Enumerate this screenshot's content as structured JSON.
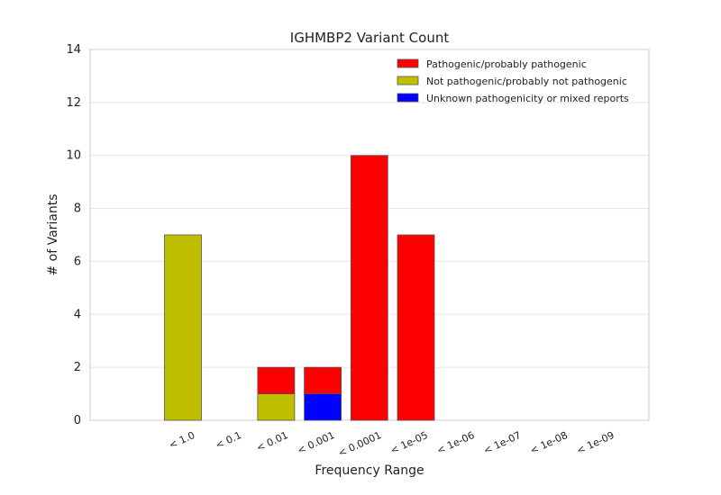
{
  "chart_data": {
    "type": "bar",
    "stacked": true,
    "title": "IGHMBP2 Variant Count",
    "xlabel": "Frequency Range",
    "ylabel": "# of Variants",
    "ylim": [
      0,
      14
    ],
    "yticks": [
      "0",
      "2",
      "4",
      "6",
      "8",
      "10",
      "12",
      "14"
    ],
    "categories": [
      "< 1.0",
      "< 0.1",
      "< 0.01",
      "< 0.001",
      "< 0.0001",
      "< 1e-05",
      "< 1e-06",
      "< 1e-07",
      "< 1e-08",
      "< 1e-09"
    ],
    "series": [
      {
        "name": "Unknown pathogenicity or mixed reports",
        "color": "#0000ff",
        "values": [
          0,
          0,
          0,
          1,
          0,
          0,
          0,
          0,
          0,
          0
        ]
      },
      {
        "name": "Not pathogenic/probably not pathogenic",
        "color": "#bfbf00",
        "values": [
          7,
          0,
          1,
          0,
          0,
          0,
          0,
          0,
          0,
          0
        ]
      },
      {
        "name": "Pathogenic/probably pathogenic",
        "color": "#ff0000",
        "values": [
          0,
          0,
          1,
          1,
          10,
          7,
          0,
          0,
          0,
          0
        ]
      }
    ],
    "legend_order": [
      "Pathogenic/probably pathogenic",
      "Not pathogenic/probably not pathogenic",
      "Unknown pathogenicity or mixed reports"
    ],
    "legend_position": "top-right",
    "grid": "horizontal"
  }
}
